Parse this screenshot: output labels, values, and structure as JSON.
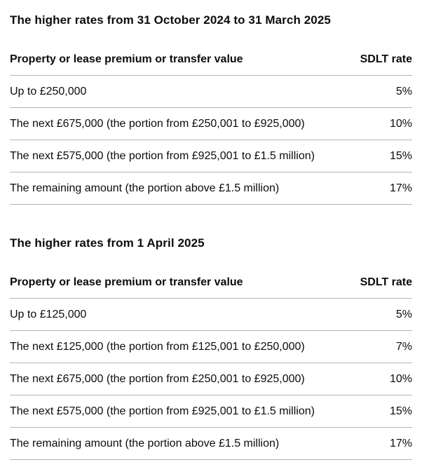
{
  "sections": [
    {
      "heading": "The higher rates from 31 October 2024 to 31 March 2025",
      "table": {
        "columns": [
          "Property or lease premium or transfer value",
          "SDLT rate"
        ],
        "rows": [
          {
            "value": "Up to £250,000",
            "rate": "5%"
          },
          {
            "value": "The next £675,000 (the portion from £250,001 to £925,000)",
            "rate": "10%"
          },
          {
            "value": "The next £575,000 (the portion from £925,001 to £1.5 million)",
            "rate": "15%"
          },
          {
            "value": "The remaining amount (the portion above £1.5 million)",
            "rate": "17%"
          }
        ]
      }
    },
    {
      "heading": "The higher rates from 1 April 2025",
      "table": {
        "columns": [
          "Property or lease premium or transfer value",
          "SDLT rate"
        ],
        "rows": [
          {
            "value": "Up to £125,000",
            "rate": "5%"
          },
          {
            "value": "The next £125,000 (the portion from £125,001 to £250,000)",
            "rate": "7%"
          },
          {
            "value": "The next £675,000 (the portion from £250,001 to £925,000)",
            "rate": "10%"
          },
          {
            "value": "The next £575,000 (the portion from £925,001 to £1.5 million)",
            "rate": "15%"
          },
          {
            "value": "The remaining amount (the portion above £1.5 million)",
            "rate": "17%"
          }
        ]
      }
    }
  ],
  "chart_data": [
    {
      "type": "table",
      "title": "The higher rates from 31 October 2024 to 31 March 2025",
      "columns": [
        "Property or lease premium or transfer value",
        "SDLT rate"
      ],
      "rows": [
        [
          "Up to £250,000",
          "5%"
        ],
        [
          "The next £675,000 (the portion from £250,001 to £925,000)",
          "10%"
        ],
        [
          "The next £575,000 (the portion from £925,001 to £1.5 million)",
          "15%"
        ],
        [
          "The remaining amount (the portion above £1.5 million)",
          "17%"
        ]
      ]
    },
    {
      "type": "table",
      "title": "The higher rates from 1 April 2025",
      "columns": [
        "Property or lease premium or transfer value",
        "SDLT rate"
      ],
      "rows": [
        [
          "Up to £125,000",
          "5%"
        ],
        [
          "The next £125,000 (the portion from £125,001 to £250,000)",
          "7%"
        ],
        [
          "The next £675,000 (the portion from £250,001 to £925,000)",
          "10%"
        ],
        [
          "The next £575,000 (the portion from £925,001 to £1.5 million)",
          "15%"
        ],
        [
          "The remaining amount (the portion above £1.5 million)",
          "17%"
        ]
      ]
    }
  ]
}
